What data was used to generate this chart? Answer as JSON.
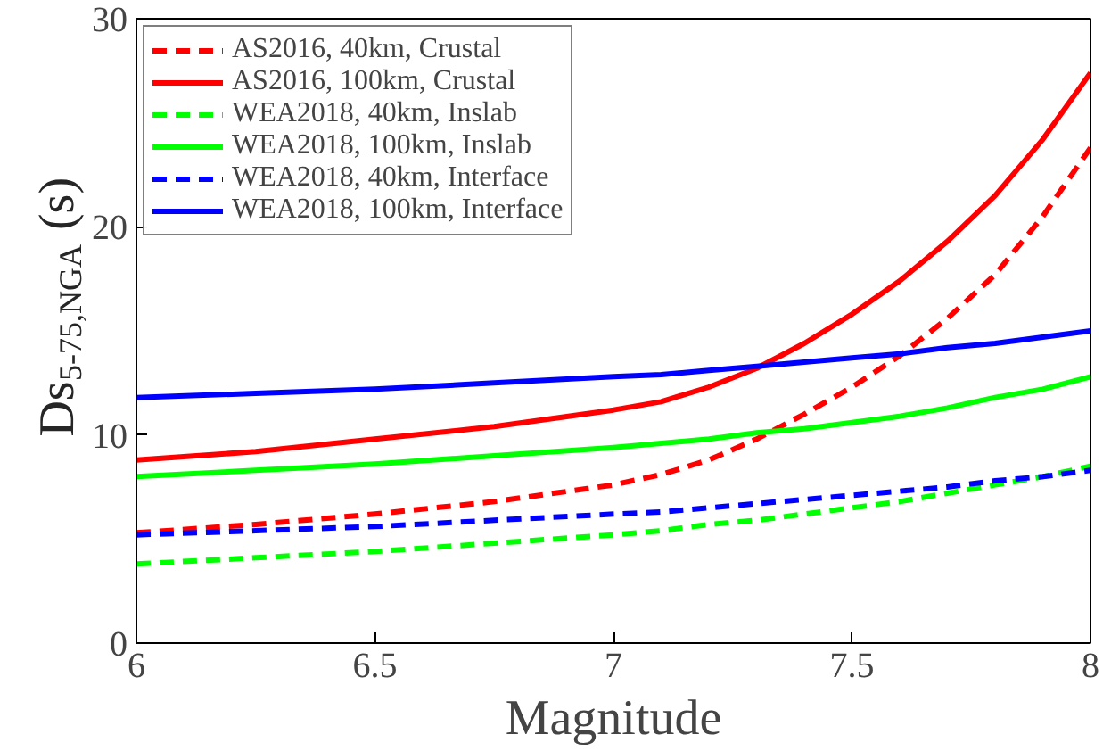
{
  "chart_data": {
    "type": "line",
    "xlabel": "Magnitude",
    "ylabel": "Ds$_{5-75,NGA}$ (s)",
    "xlim": [
      6,
      8
    ],
    "ylim": [
      0,
      30
    ],
    "xticks": [
      6,
      6.5,
      7,
      7.5,
      8
    ],
    "yticks": [
      0,
      10,
      20,
      30
    ],
    "grid": false,
    "legend": "top left",
    "x": [
      6,
      6.25,
      6.5,
      6.75,
      7,
      7.1,
      7.2,
      7.3,
      7.4,
      7.5,
      7.6,
      7.7,
      7.8,
      7.9,
      8
    ],
    "series": [
      {
        "name": "AS2016, 40km, Crustal",
        "color": "#ff0000",
        "line_style": "dashed",
        "values": [
          5.3,
          5.7,
          6.2,
          6.8,
          7.6,
          8.1,
          8.8,
          9.8,
          11.0,
          12.3,
          13.8,
          15.6,
          17.7,
          20.5,
          23.8
        ]
      },
      {
        "name": "AS2016, 100km, Crustal",
        "color": "#ff0000",
        "line_style": "solid",
        "values": [
          8.8,
          9.2,
          9.8,
          10.4,
          11.2,
          11.6,
          12.3,
          13.2,
          14.4,
          15.8,
          17.4,
          19.3,
          21.5,
          24.2,
          27.4
        ]
      },
      {
        "name": "WEA2018, 40km, Inslab",
        "color": "#00ff00",
        "line_style": "dashed",
        "values": [
          3.8,
          4.1,
          4.4,
          4.8,
          5.2,
          5.4,
          5.7,
          5.9,
          6.2,
          6.5,
          6.8,
          7.2,
          7.6,
          8.0,
          8.5
        ]
      },
      {
        "name": "WEA2018, 100km, Inslab",
        "color": "#00ff00",
        "line_style": "solid",
        "values": [
          8.0,
          8.3,
          8.6,
          9.0,
          9.4,
          9.6,
          9.8,
          10.1,
          10.3,
          10.6,
          10.9,
          11.3,
          11.8,
          12.2,
          12.8
        ]
      },
      {
        "name": "WEA2018, 40km, Interface",
        "color": "#0000ff",
        "line_style": "dashed",
        "values": [
          5.2,
          5.4,
          5.6,
          5.9,
          6.2,
          6.3,
          6.5,
          6.7,
          6.9,
          7.1,
          7.3,
          7.5,
          7.8,
          8.0,
          8.3
        ]
      },
      {
        "name": "WEA2018, 100km, Interface",
        "color": "#0000ff",
        "line_style": "solid",
        "values": [
          11.8,
          12.0,
          12.2,
          12.5,
          12.8,
          12.9,
          13.1,
          13.3,
          13.5,
          13.7,
          13.9,
          14.2,
          14.4,
          14.7,
          15.0
        ]
      }
    ]
  }
}
